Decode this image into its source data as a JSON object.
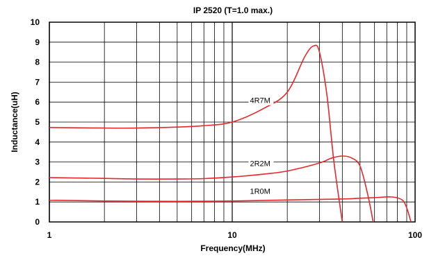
{
  "chart_data": {
    "type": "line",
    "title": "IP 2520 (T=1.0 max.)",
    "xlabel": "Frequency(MHz)",
    "ylabel": "Inductance(uH)",
    "x_scale": "log",
    "xlim": [
      1,
      100
    ],
    "ylim": [
      0,
      10
    ],
    "x_tick_labels": [
      "1",
      "10",
      "100"
    ],
    "y_tick_labels": [
      "0",
      "1",
      "2",
      "3",
      "4",
      "5",
      "6",
      "7",
      "8",
      "9",
      "10"
    ],
    "grid": true,
    "line_color": "#e8262a",
    "series": [
      {
        "name": "4R7M",
        "x": [
          1,
          2,
          3,
          5,
          7,
          10,
          15,
          20,
          25,
          28,
          30,
          33,
          36,
          40
        ],
        "y": [
          4.73,
          4.7,
          4.7,
          4.75,
          4.82,
          5.0,
          5.7,
          6.5,
          8.3,
          8.82,
          8.5,
          6.3,
          3.0,
          0
        ]
      },
      {
        "name": "2R2M",
        "x": [
          1,
          2,
          3,
          5,
          7,
          10,
          15,
          20,
          30,
          35,
          40,
          45,
          50,
          55,
          59
        ],
        "y": [
          2.22,
          2.18,
          2.15,
          2.15,
          2.17,
          2.25,
          2.4,
          2.55,
          2.95,
          3.2,
          3.3,
          3.2,
          2.8,
          1.4,
          0
        ]
      },
      {
        "name": "1R0M",
        "x": [
          1,
          1.2,
          2,
          5,
          10,
          20,
          40,
          60,
          75,
          85,
          90,
          95
        ],
        "y": [
          1.08,
          1.08,
          1.05,
          1.03,
          1.05,
          1.1,
          1.15,
          1.22,
          1.25,
          1.1,
          0.7,
          0
        ]
      }
    ]
  }
}
